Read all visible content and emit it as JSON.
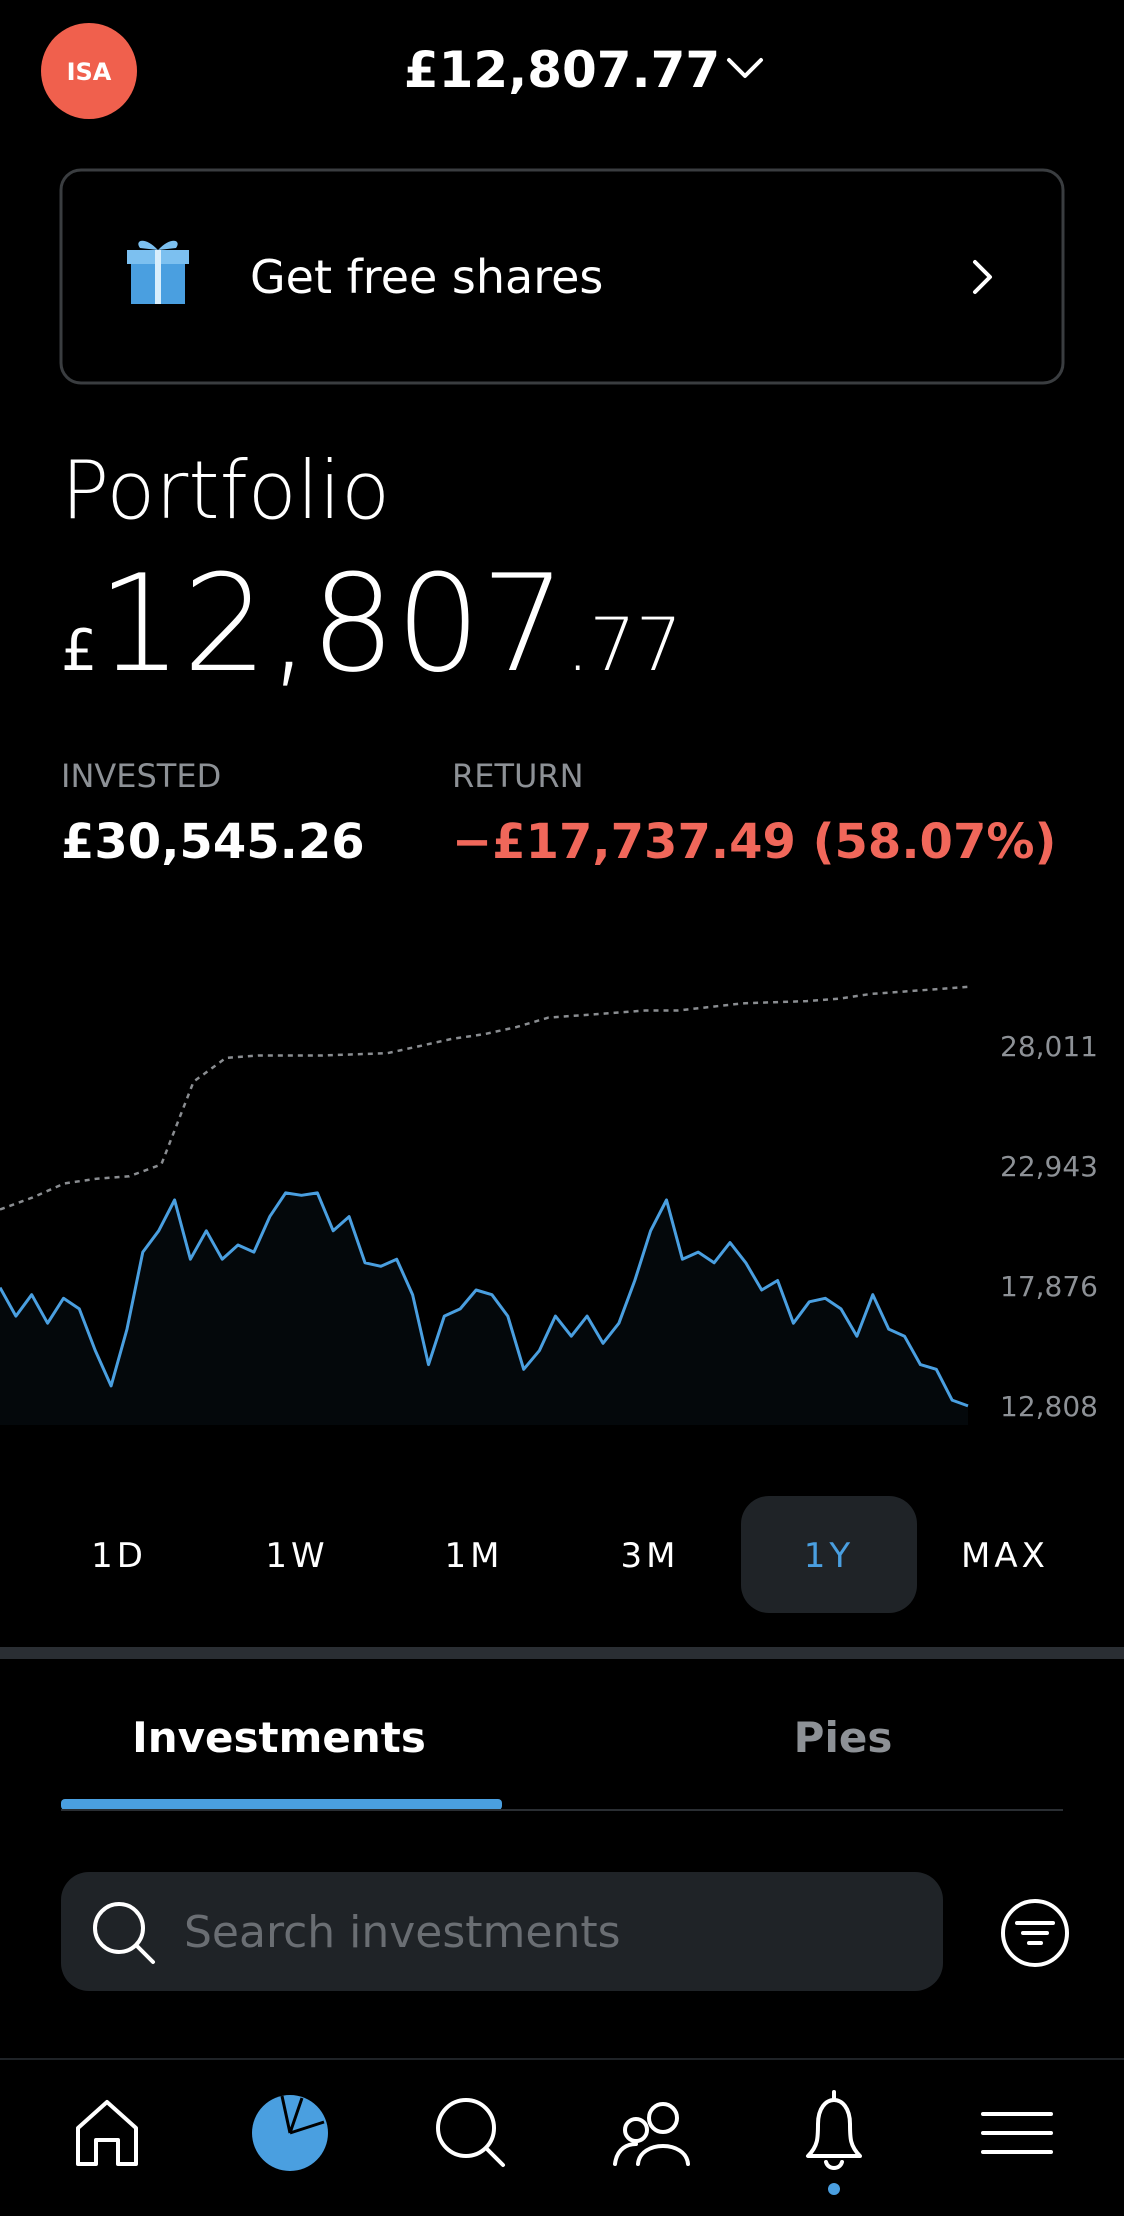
{
  "header": {
    "account_badge": "ISA",
    "total_value": "£12,807.77"
  },
  "banner": {
    "text": "Get free shares"
  },
  "portfolio": {
    "title": "Portfolio",
    "value_symbol": "£",
    "value_whole": "12,807",
    "value_decimal": ".77",
    "invested_label": "INVESTED",
    "invested_value": "£30,545.26",
    "return_label": "RETURN",
    "return_value": "−£17,737.49 (58.07%)"
  },
  "chart_data": {
    "type": "line",
    "ylim": [
      12000,
      31000
    ],
    "yticks": [
      {
        "value": 28011,
        "label": "28,011"
      },
      {
        "value": 22943,
        "label": "22,943"
      },
      {
        "value": 17876,
        "label": "17,876"
      },
      {
        "value": 12808,
        "label": "12,808"
      }
    ],
    "grid": false,
    "series": [
      {
        "color": "#8a8d91",
        "style": "dashed",
        "values": [
          21100,
          21600,
          22200,
          22400,
          22500,
          23000,
          26500,
          27500,
          27600,
          27600,
          27600,
          27650,
          27700,
          28000,
          28300,
          28500,
          28800,
          29200,
          29300,
          29400,
          29500,
          29500,
          29650,
          29800,
          29850,
          29900,
          30000,
          30200,
          30300,
          30400,
          30500
        ]
      },
      {
        "color": "#4a9fe0",
        "style": "solid",
        "values": [
          17800,
          16600,
          17500,
          16300,
          17350,
          16900,
          15150,
          13650,
          16050,
          19300,
          20200,
          21500,
          19000,
          20200,
          19000,
          19600,
          19300,
          20800,
          21800,
          21700,
          21800,
          20200,
          20800,
          18850,
          18700,
          19000,
          17500,
          14550,
          16600,
          16900,
          17700,
          17500,
          16600,
          14350,
          15150,
          16600,
          15750,
          16600,
          15450,
          16300,
          18100,
          20200,
          21500,
          19000,
          19300,
          18850,
          19700,
          18850,
          17700,
          18100,
          16300,
          17200,
          17350,
          16900,
          15750,
          17500,
          16050,
          15750,
          14550,
          14350,
          13050,
          12808
        ]
      }
    ]
  },
  "ranges": {
    "options": [
      "1D",
      "1W",
      "1M",
      "3M",
      "1Y",
      "MAX"
    ],
    "selected": 4
  },
  "tabs": {
    "options": [
      "Investments",
      "Pies"
    ],
    "selected": 0
  },
  "search": {
    "placeholder": "Search investments"
  }
}
